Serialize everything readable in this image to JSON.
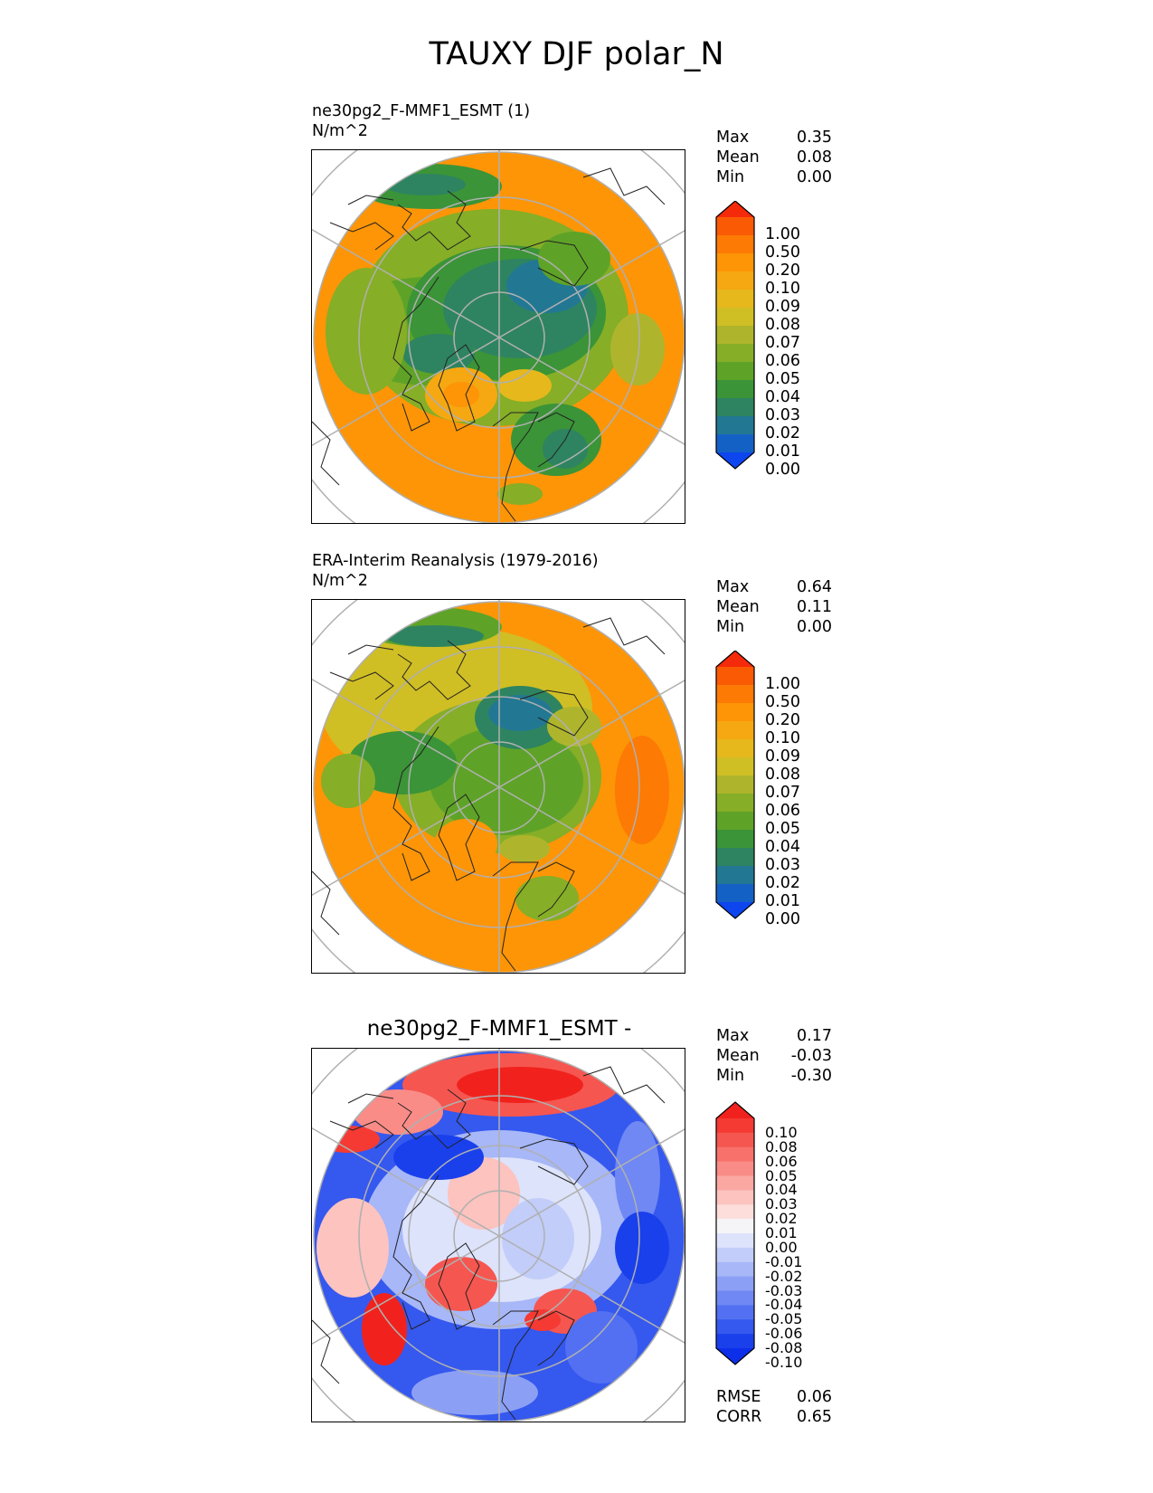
{
  "title": "TAUXY DJF polar_N",
  "panels": [
    {
      "title_line1": "ne30pg2_F-MMF1_ESMT (1)",
      "title_line2": "N/m^2",
      "stats": [
        {
          "label": "Max",
          "value": "0.35"
        },
        {
          "label": "Mean",
          "value": "0.08"
        },
        {
          "label": "Min",
          "value": "0.00"
        }
      ],
      "colorbar": {
        "levels": [
          "1.00",
          "0.50",
          "0.20",
          "0.10",
          "0.09",
          "0.08",
          "0.07",
          "0.06",
          "0.05",
          "0.04",
          "0.03",
          "0.02",
          "0.01",
          "0.00"
        ],
        "colors": [
          "#f52a0a",
          "#fb5a05",
          "#fd7a04",
          "#fd9507",
          "#f5a811",
          "#e6b81c",
          "#d0be25",
          "#aeb52c",
          "#86ae27",
          "#5ea327",
          "#3b9437",
          "#2e8460",
          "#227893",
          "#1461c6",
          "#0d45ee"
        ]
      }
    },
    {
      "title_line1": "ERA-Interim Reanalysis (1979-2016)",
      "title_line2": "N/m^2",
      "stats": [
        {
          "label": "Max",
          "value": "0.64"
        },
        {
          "label": "Mean",
          "value": "0.11"
        },
        {
          "label": "Min",
          "value": "0.00"
        }
      ],
      "colorbar": {
        "levels": [
          "1.00",
          "0.50",
          "0.20",
          "0.10",
          "0.09",
          "0.08",
          "0.07",
          "0.06",
          "0.05",
          "0.04",
          "0.03",
          "0.02",
          "0.01",
          "0.00"
        ],
        "colors": [
          "#f52a0a",
          "#fb5a05",
          "#fd7a04",
          "#fd9507",
          "#f5a811",
          "#e6b81c",
          "#d0be25",
          "#aeb52c",
          "#86ae27",
          "#5ea327",
          "#3b9437",
          "#2e8460",
          "#227893",
          "#1461c6",
          "#0d45ee"
        ]
      }
    },
    {
      "title": "ne30pg2_F-MMF1_ESMT -",
      "stats": [
        {
          "label": "Max",
          "value": "0.17"
        },
        {
          "label": "Mean",
          "value": "-0.03"
        },
        {
          "label": "Min",
          "value": "-0.30"
        }
      ],
      "colorbar": {
        "levels": [
          "0.10",
          "0.08",
          "0.06",
          "0.05",
          "0.04",
          "0.03",
          "0.02",
          "0.01",
          "0.00",
          "-0.01",
          "-0.02",
          "-0.03",
          "-0.04",
          "-0.05",
          "-0.06",
          "-0.08",
          "-0.10"
        ],
        "colors": [
          "#f1221d",
          "#f43a33",
          "#f65650",
          "#f8716b",
          "#f98c87",
          "#fba8a3",
          "#fcc3bf",
          "#fddedb",
          "#f5f5f7",
          "#dde3fb",
          "#c2cdf9",
          "#a7b7f7",
          "#8ba0f5",
          "#6f88f3",
          "#5270f1",
          "#3558ef",
          "#1a40ec",
          "#0d2fea"
        ]
      },
      "metrics": [
        {
          "label": "RMSE",
          "value": "0.06"
        },
        {
          "label": "CORR",
          "value": "0.65"
        }
      ]
    }
  ]
}
